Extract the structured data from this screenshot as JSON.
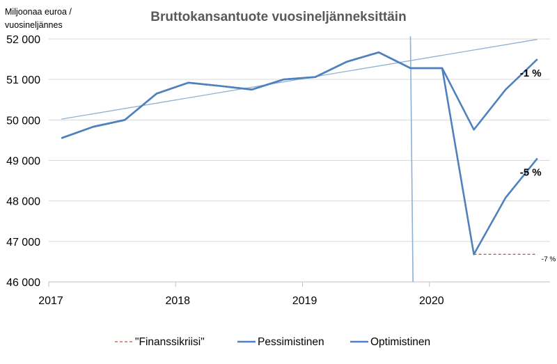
{
  "chart_data": {
    "type": "line",
    "title": "Bruttokansantuote vuosineljänneksittäin",
    "ylabel_lines": [
      "Miljoonaa euroa /",
      "vuosineljännes"
    ],
    "xlabel": "",
    "ylim": [
      46000,
      52000
    ],
    "yticks": [
      46000,
      47000,
      48000,
      49000,
      50000,
      51000,
      52000
    ],
    "ytick_labels": [
      "46 000",
      "47 000",
      "48 000",
      "49 000",
      "50 000",
      "51 000",
      "52 000"
    ],
    "xlim": [
      2017,
      2020.95
    ],
    "xticks": [
      2017,
      2018,
      2019,
      2020
    ],
    "xtick_labels": [
      "2017",
      "2018",
      "2019",
      "2020"
    ],
    "grid": {
      "horizontal": true,
      "vertical": false
    },
    "legend_position": "bottom",
    "series": [
      {
        "name": "Pessimistinen",
        "color": "#4f81bd",
        "points": [
          [
            2017.1,
            49550
          ],
          [
            2017.35,
            49830
          ],
          [
            2017.6,
            50000
          ],
          [
            2017.85,
            50650
          ],
          [
            2018.1,
            50920
          ],
          [
            2018.35,
            50840
          ],
          [
            2018.6,
            50750
          ],
          [
            2018.85,
            51000
          ],
          [
            2019.1,
            51060
          ],
          [
            2019.35,
            51440
          ],
          [
            2019.6,
            51670
          ],
          [
            2019.85,
            51280
          ],
          [
            2020.1,
            51280
          ],
          [
            2020.35,
            46680
          ],
          [
            2020.6,
            48080
          ],
          [
            2020.85,
            49050
          ]
        ]
      },
      {
        "name": "Optimistinen",
        "color": "#4f81bd",
        "points": [
          [
            2017.1,
            49550
          ],
          [
            2017.35,
            49830
          ],
          [
            2017.6,
            50000
          ],
          [
            2017.85,
            50650
          ],
          [
            2018.1,
            50920
          ],
          [
            2018.35,
            50840
          ],
          [
            2018.6,
            50750
          ],
          [
            2018.85,
            51000
          ],
          [
            2019.1,
            51060
          ],
          [
            2019.35,
            51440
          ],
          [
            2019.6,
            51670
          ],
          [
            2019.85,
            51280
          ],
          [
            2020.1,
            51280
          ],
          [
            2020.35,
            49760
          ],
          [
            2020.6,
            50750
          ],
          [
            2020.85,
            51500
          ]
        ]
      },
      {
        "name": "\"Finanssikriisi\"",
        "color": "#c0504d",
        "dashed": true,
        "points": [
          [
            2020.35,
            46680
          ],
          [
            2020.85,
            46680
          ]
        ]
      }
    ],
    "trend_line": {
      "color": "#8eb0d6",
      "points": [
        [
          2017.1,
          50020
        ],
        [
          2020.85,
          51990
        ]
      ]
    },
    "vertical_marker": {
      "color": "#8eb0d6",
      "x_top": 2019.85,
      "x_bottom": 2019.87
    },
    "annotations": [
      {
        "text": "-1 %",
        "x": 2020.85,
        "y": 51500,
        "style": "big"
      },
      {
        "text": "-5 %",
        "x": 2020.85,
        "y": 49050,
        "style": "big"
      },
      {
        "text": "-7 %",
        "x": 2020.85,
        "y": 46680,
        "style": "small"
      }
    ],
    "legend": [
      "\"Finanssikriisi\"",
      "Pessimistinen",
      "Optimistinen"
    ]
  }
}
